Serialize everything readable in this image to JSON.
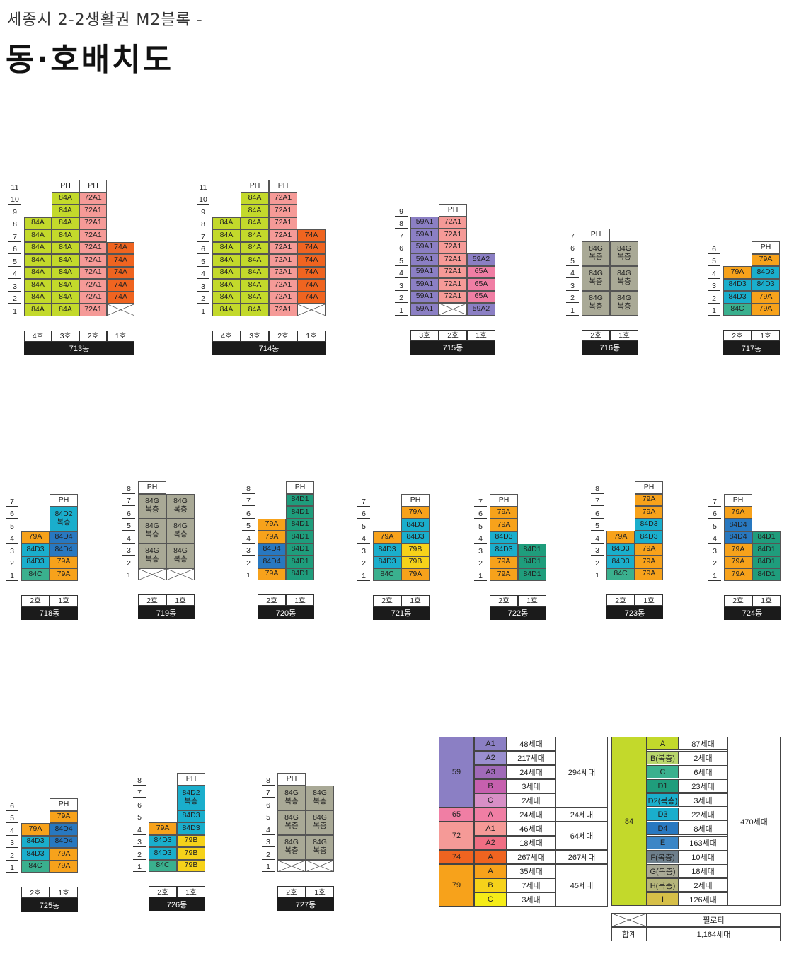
{
  "header": {
    "subtitle": "세종시 2-2생활권 M2블록 -",
    "title": "동·호배치도"
  },
  "colors": {
    "84A": "#c3d92b",
    "72A1": "#f59a97",
    "74A": "#ef6420",
    "59A1": "#8b7fc4",
    "59A2": "#8b7fc4",
    "65A": "#f07ea4",
    "84G": "#a9a996",
    "84D1": "#1f9d7c",
    "84D2": "#1aaecc",
    "84D3": "#1aaecc",
    "84D4": "#2878c0",
    "84C": "#3ab08e",
    "79A": "#f7a21b",
    "79B": "#f6d21a",
    "PH": "#ffffff",
    "X": "#ffffff"
  },
  "buildings": [
    {
      "id": "713",
      "dong": "713동",
      "floors": [
        "1",
        "2",
        "3",
        "4",
        "5",
        "6",
        "7",
        "8",
        "9",
        "10",
        "11"
      ],
      "cols": [
        "4호",
        "3호",
        "2호",
        "1호"
      ],
      "cells": [
        [
          "84A",
          "84A",
          "84A",
          "84A",
          "84A",
          "84A",
          "84A",
          "84A",
          null,
          null,
          null
        ],
        [
          "84A",
          "84A",
          "84A",
          "84A",
          "84A",
          "84A",
          "84A",
          "84A",
          "84A",
          "84A",
          "PH"
        ],
        [
          "72A1",
          "72A1",
          "72A1",
          "72A1",
          "72A1",
          "72A1",
          "72A1",
          "72A1",
          "72A1",
          "72A1",
          "PH"
        ],
        [
          "X",
          "74A",
          "74A",
          "74A",
          "74A",
          "74A",
          null,
          null,
          null,
          null,
          null
        ]
      ]
    },
    {
      "id": "714",
      "dong": "714동",
      "floors": [
        "1",
        "2",
        "3",
        "4",
        "5",
        "6",
        "7",
        "8",
        "9",
        "10",
        "11"
      ],
      "cols": [
        "4호",
        "3호",
        "2호",
        "1호"
      ],
      "cells": [
        [
          "84A",
          "84A",
          "84A",
          "84A",
          "84A",
          "84A",
          "84A",
          "84A",
          null,
          null,
          null
        ],
        [
          "84A",
          "84A",
          "84A",
          "84A",
          "84A",
          "84A",
          "84A",
          "84A",
          "84A",
          "84A",
          "PH"
        ],
        [
          "72A1",
          "72A1",
          "72A1",
          "72A1",
          "72A1",
          "72A1",
          "72A1",
          "72A1",
          "72A1",
          "72A1",
          "PH"
        ],
        [
          "X",
          "74A",
          "74A",
          "74A",
          "74A",
          "74A",
          "74A",
          null,
          null,
          null,
          null
        ]
      ]
    },
    {
      "id": "715",
      "dong": "715동",
      "floors": [
        "1",
        "2",
        "3",
        "4",
        "5",
        "6",
        "7",
        "8",
        "9"
      ],
      "cols": [
        "3호",
        "2호",
        "1호"
      ],
      "cells": [
        [
          "59A1",
          "59A1",
          "59A1",
          "59A1",
          "59A1",
          "59A1",
          "59A1",
          "59A1",
          null
        ],
        [
          "X",
          "72A1",
          "72A1",
          "72A1",
          "72A1",
          "72A1",
          "72A1",
          "72A1",
          "PH"
        ],
        [
          "59A2",
          "65A",
          "65A",
          "65A",
          "59A2",
          null,
          null,
          null,
          null
        ]
      ]
    },
    {
      "id": "716",
      "dong": "716동",
      "floors": [
        "1",
        "2",
        "3",
        "4",
        "5",
        "6",
        "7"
      ],
      "cols": [
        "2호",
        "1호"
      ],
      "duplex": true,
      "cells": [
        [
          "84G",
          "84G",
          "84G",
          "PH"
        ],
        [
          "84G",
          "84G",
          "84G",
          null
        ]
      ]
    },
    {
      "id": "717",
      "dong": "717동",
      "floors": [
        "1",
        "2",
        "3",
        "4",
        "5",
        "6"
      ],
      "cols": [
        "2호",
        "1호"
      ],
      "cells": [
        [
          "84C",
          "84D3",
          "84D3",
          "79A",
          null,
          null
        ],
        [
          "79A",
          "79A",
          "84D3",
          "84D3",
          "79A",
          "PH"
        ]
      ]
    },
    {
      "id": "718",
      "dong": "718동",
      "floors": [
        "1",
        "2",
        "3",
        "4",
        "5",
        "6",
        "7"
      ],
      "cols": [
        "2호",
        "1호"
      ],
      "cells": [
        [
          "84C",
          "84D3",
          "84D3",
          "79A",
          null,
          null,
          null
        ],
        [
          "79A",
          "79A",
          "84D4",
          "84D4",
          "84D2",
          "84D2",
          "PH"
        ]
      ],
      "merge1": true
    },
    {
      "id": "719",
      "dong": "719동",
      "floors": [
        "1",
        "2",
        "3",
        "4",
        "5",
        "6",
        "7",
        "8"
      ],
      "cols": [
        "2호",
        "1호"
      ],
      "duplex2": true,
      "cells": [
        [
          "X",
          "84G",
          "84G",
          "84G",
          "PH"
        ],
        [
          "X",
          "84G",
          "84G",
          "84G",
          null
        ]
      ]
    },
    {
      "id": "720",
      "dong": "720동",
      "floors": [
        "1",
        "2",
        "3",
        "4",
        "5",
        "6",
        "7",
        "8"
      ],
      "cols": [
        "2호",
        "1호"
      ],
      "cells": [
        [
          "79A",
          "84D4",
          "84D4",
          "79A",
          "79A",
          null,
          null,
          null
        ],
        [
          "84D1",
          "84D1",
          "84D1",
          "84D1",
          "84D1",
          "84D1",
          "84D1",
          "PH"
        ]
      ]
    },
    {
      "id": "721",
      "dong": "721동",
      "floors": [
        "1",
        "2",
        "3",
        "4",
        "5",
        "6",
        "7"
      ],
      "cols": [
        "2호",
        "1호"
      ],
      "cells": [
        [
          "84C",
          "84D3",
          "84D3",
          "79A",
          null,
          null,
          null
        ],
        [
          "79A",
          "79B",
          "79B",
          "84D3",
          "84D3",
          "79A",
          "PH"
        ]
      ]
    },
    {
      "id": "722",
      "dong": "722동",
      "floors": [
        "1",
        "2",
        "3",
        "4",
        "5",
        "6",
        "7"
      ],
      "cols": [
        "2호",
        "1호"
      ],
      "cells": [
        [
          "79A",
          "79A",
          "84D3",
          "84D3",
          "79A",
          "79A",
          "PH"
        ],
        [
          "84D1",
          "84D1",
          "84D1",
          null,
          null,
          null,
          null
        ]
      ]
    },
    {
      "id": "723",
      "dong": "723동",
      "floors": [
        "1",
        "2",
        "3",
        "4",
        "5",
        "6",
        "7",
        "8"
      ],
      "cols": [
        "2호",
        "1호"
      ],
      "cells": [
        [
          "84C",
          "84D3",
          "84D3",
          "79A",
          null,
          null,
          null,
          null
        ],
        [
          "79A",
          "79A",
          "79A",
          "84D3",
          "84D3",
          "79A",
          "79A",
          "PH"
        ]
      ]
    },
    {
      "id": "724",
      "dong": "724동",
      "floors": [
        "1",
        "2",
        "3",
        "4",
        "5",
        "6",
        "7"
      ],
      "cols": [
        "2호",
        "1호"
      ],
      "cells": [
        [
          "79A",
          "79A",
          "79A",
          "84D4",
          "84D4",
          "79A",
          "PH"
        ],
        [
          "84D1",
          "84D1",
          "84D1",
          "84D1",
          null,
          null,
          null
        ]
      ]
    },
    {
      "id": "725",
      "dong": "725동",
      "floors": [
        "1",
        "2",
        "3",
        "4",
        "5",
        "6"
      ],
      "cols": [
        "2호",
        "1호"
      ],
      "cells": [
        [
          "84C",
          "84D3",
          "84D3",
          "79A",
          null,
          null
        ],
        [
          "79A",
          "79A",
          "84D4",
          "84D4",
          "79A",
          "PH"
        ]
      ]
    },
    {
      "id": "726",
      "dong": "726동",
      "floors": [
        "1",
        "2",
        "3",
        "4",
        "5",
        "6",
        "7",
        "8"
      ],
      "cols": [
        "2호",
        "1호"
      ],
      "cells": [
        [
          "84C",
          "84D3",
          "84D3",
          "79A",
          null,
          null,
          null,
          null
        ],
        [
          "79B",
          "79B",
          "79B",
          "84D3",
          "84D3",
          "84D2",
          "84D2",
          "PH"
        ]
      ],
      "merge1b": true
    },
    {
      "id": "727",
      "dong": "727동",
      "floors": [
        "1",
        "2",
        "3",
        "4",
        "5",
        "6",
        "7",
        "8"
      ],
      "cols": [
        "2호",
        "1호"
      ],
      "duplex2": true,
      "cells": [
        [
          "X",
          "84G",
          "84G",
          "84G",
          "PH"
        ],
        [
          "X",
          "84G",
          "84G",
          "84G",
          null
        ]
      ]
    }
  ],
  "duplex_label": "복층",
  "legend": {
    "groups": [
      {
        "size": "59",
        "rows": [
          [
            "A1",
            "48세대"
          ],
          [
            "A2",
            "217세대"
          ],
          [
            "A3",
            "24세대"
          ],
          [
            "B",
            "3세대"
          ],
          [
            "C",
            "2세대"
          ]
        ],
        "total": "294세대",
        "colors": [
          "#8b7fc4",
          "#9a8fcf",
          "#a06ab8",
          "#c660ae",
          "#d88fc6"
        ],
        "main": "#8b7fc4"
      },
      {
        "size": "65",
        "rows": [
          [
            "A",
            "24세대"
          ]
        ],
        "total": "24세대",
        "colors": [
          "#f07ea4"
        ],
        "main": "#f07ea4"
      },
      {
        "size": "72",
        "rows": [
          [
            "A1",
            "46세대"
          ],
          [
            "A2",
            "18세대"
          ]
        ],
        "total": "64세대",
        "colors": [
          "#f59a97",
          "#ef6e83"
        ],
        "main": "#f59a97"
      },
      {
        "size": "74",
        "rows": [
          [
            "A",
            "267세대"
          ]
        ],
        "total": "267세대",
        "colors": [
          "#ef6420"
        ],
        "main": "#ef6420"
      },
      {
        "size": "79",
        "rows": [
          [
            "A",
            "35세대"
          ],
          [
            "B",
            "7세대"
          ],
          [
            "C",
            "3세대"
          ]
        ],
        "total": "45세대",
        "colors": [
          "#f7a21b",
          "#f6d21a",
          "#f5ec18"
        ],
        "main": "#f7a21b"
      }
    ],
    "group84": {
      "size": "84",
      "total": "470세대",
      "main": "#c3d92b",
      "rows": [
        [
          "A",
          "87세대",
          "#c3d92b"
        ],
        [
          "B(복층)",
          "2세대",
          "#b8d66d"
        ],
        [
          "C",
          "6세대",
          "#3ab08e"
        ],
        [
          "D1",
          "23세대",
          "#1f9d7c"
        ],
        [
          "D2(복층)",
          "3세대",
          "#1aaecc"
        ],
        [
          "D3",
          "22세대",
          "#1aaecc"
        ],
        [
          "D4",
          "8세대",
          "#2878c0"
        ],
        [
          "E",
          "163세대",
          "#3b86c6"
        ],
        [
          "F(복층)",
          "10세대",
          "#6e7f8c"
        ],
        [
          "G(복층)",
          "18세대",
          "#a9a996"
        ],
        [
          "H(복층)",
          "2세대",
          "#b5b57a"
        ],
        [
          "I",
          "126세대",
          "#d6bf48"
        ]
      ]
    },
    "piloti_label": "필로티",
    "sum_label": "합계",
    "sum_value": "1,164세대"
  }
}
